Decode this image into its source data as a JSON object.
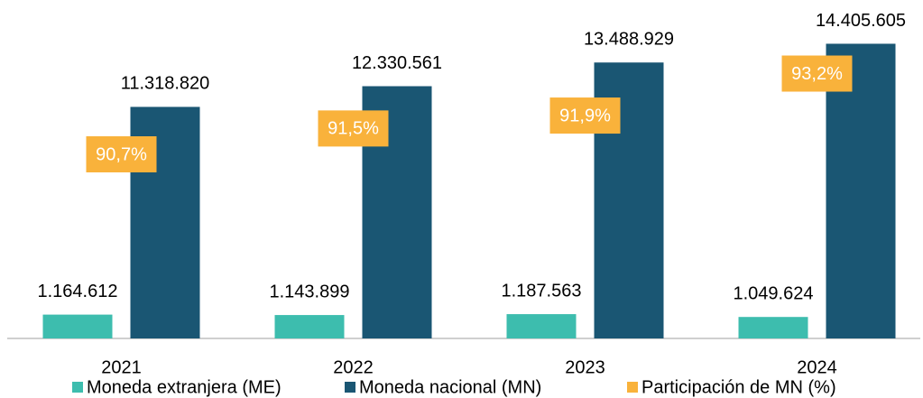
{
  "chart_data": {
    "type": "bar",
    "categories": [
      "2021",
      "2022",
      "2023",
      "2024"
    ],
    "series": [
      {
        "name": "Moneda extranjera (ME)",
        "color": "#3dbdae",
        "values": [
          1164612,
          1143899,
          1187563,
          1049624
        ],
        "value_labels": [
          "1.164.612",
          "1.143.899",
          "1.187.563",
          "1.049.624"
        ]
      },
      {
        "name": "Moneda nacional (MN)",
        "color": "#1a5673",
        "values": [
          11318820,
          12330561,
          13488929,
          14405605
        ],
        "value_labels": [
          "11.318.820",
          "12.330.561",
          "13.488.929",
          "14.405.605"
        ]
      },
      {
        "name": "Participación de MN (%)",
        "color": "#f9b23b",
        "axis": "y2",
        "values": [
          90.7,
          91.5,
          91.9,
          93.2
        ],
        "value_labels": [
          "90,7%",
          "91,5%",
          "91,9%",
          "93,2%"
        ]
      }
    ],
    "ylim": [
      0,
      15000000
    ],
    "y2lim": [
      85,
      94.5
    ],
    "legend": "bottom"
  }
}
